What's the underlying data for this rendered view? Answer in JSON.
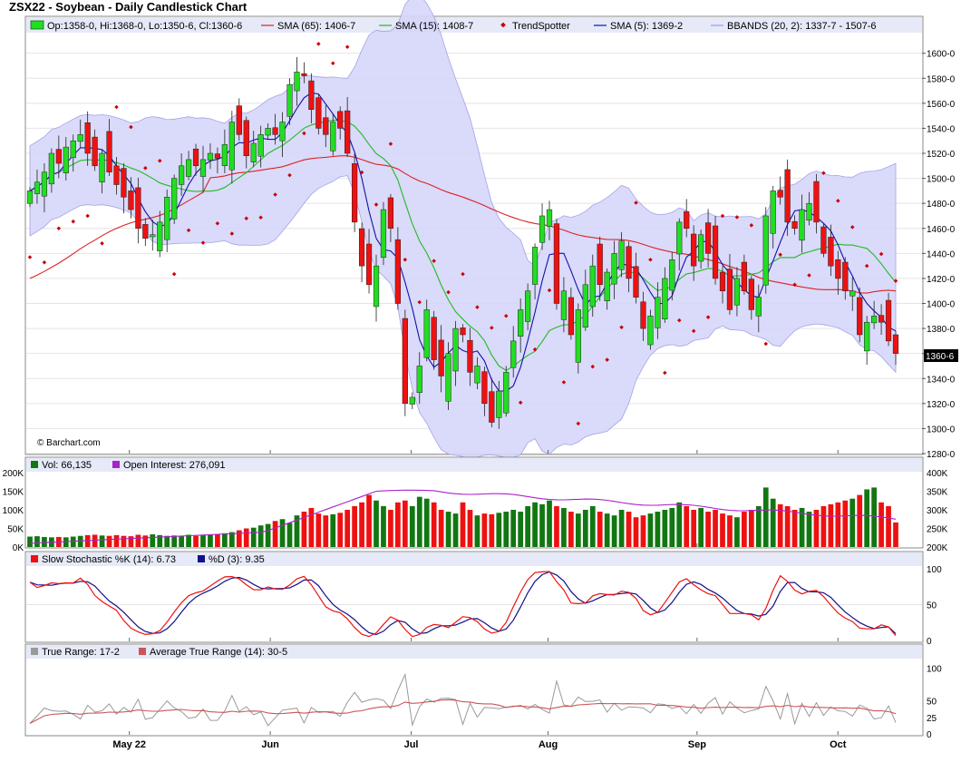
{
  "title": "ZSX22 - Soybean - Daily Candlestick Chart",
  "watermark": "© Barchart.com",
  "colors": {
    "up": "#22dd22",
    "down": "#ee1111",
    "sma65": "#dd2222",
    "sma15": "#22bb22",
    "sma5": "#1111aa",
    "trendspotter": "#cc0000",
    "bbands_fill": "#d6d6fa",
    "bbands_line": "#9a9ae8",
    "band_bg": "#e6e9f7",
    "vol_up": "#117711",
    "vol_down": "#ee1111",
    "oi": "#aa22cc",
    "stoch_k": "#ee1111",
    "stoch_d": "#111188",
    "tr": "#999999",
    "atr": "#cc5555"
  },
  "legend_price": {
    "ohlc": "Op:1358-0, Hi:1368-0, Lo:1350-6, Cl:1360-6",
    "sma65": "SMA (65): 1406-7",
    "sma15": "SMA (15): 1408-7",
    "trendspotter": "TrendSpotter",
    "sma5": "SMA (5): 1369-2",
    "bbands": "BBANDS (20, 2): 1337-7 - 1507-6"
  },
  "legend_volume": {
    "vol": "Vol: 66,135",
    "oi": "Open Interest: 276,091"
  },
  "legend_stoch": {
    "k": "Slow Stochastic %K (14): 6.73",
    "d": "%D (3): 9.35"
  },
  "legend_tr": {
    "tr": "True Range: 17-2",
    "atr": "Average True Range (14): 30-5"
  },
  "last_price_label": "1360-6",
  "x_labels": [
    "May 22",
    "Jun",
    "Jul",
    "Aug",
    "Sep",
    "Oct"
  ],
  "price_axis": {
    "ticks": [
      "1280-0",
      "1300-0",
      "1320-0",
      "1340-0",
      "1360-0",
      "1380-0",
      "1400-0",
      "1420-0",
      "1440-0",
      "1460-0",
      "1480-0",
      "1500-0",
      "1520-0",
      "1540-0",
      "1560-0",
      "1580-0",
      "1600-0"
    ]
  },
  "volume_axis": {
    "left": [
      "0K",
      "50K",
      "100K",
      "150K",
      "200K"
    ],
    "right": [
      "200K",
      "250K",
      "300K",
      "350K",
      "400K"
    ]
  },
  "stoch_axis": [
    "0",
    "50",
    "100"
  ],
  "tr_axis": [
    "0",
    "25",
    "50",
    "100"
  ],
  "chart_data": {
    "type": "candlestick",
    "x_label_positions": [
      0.11,
      0.285,
      0.46,
      0.63,
      0.815,
      0.99
    ],
    "price": {
      "ylim": [
        1280,
        1615
      ],
      "close": [
        1490,
        1497,
        1505,
        1520,
        1512,
        1525,
        1530,
        1535,
        1520,
        1510,
        1520,
        1505,
        1495,
        1485,
        1475,
        1460,
        1452,
        1455,
        1465,
        1485,
        1500,
        1510,
        1515,
        1510,
        1515,
        1520,
        1516,
        1527,
        1545,
        1535,
        1518,
        1528,
        1535,
        1540,
        1535,
        1545,
        1575,
        1585,
        1582,
        1555,
        1540,
        1535,
        1545,
        1540,
        1520,
        1465,
        1430,
        1415,
        1430,
        1475,
        1460,
        1400,
        1320,
        1325,
        1350,
        1395,
        1355,
        1342,
        1360,
        1380,
        1375,
        1345,
        1350,
        1320,
        1305,
        1330,
        1345,
        1370,
        1395,
        1410,
        1445,
        1470,
        1475,
        1400,
        1410,
        1375,
        1395,
        1415,
        1430,
        1415,
        1425,
        1440,
        1450,
        1420,
        1405,
        1380,
        1390,
        1405,
        1420,
        1435,
        1465,
        1460,
        1430,
        1455,
        1440,
        1420,
        1410,
        1395,
        1420,
        1410,
        1395,
        1405,
        1470,
        1490,
        1485,
        1465,
        1460,
        1475,
        1480,
        1465,
        1440,
        1430,
        1420,
        1410,
        1410,
        1375,
        1385,
        1390,
        1385,
        1370,
        1360
      ],
      "sma65_end": 1406.875,
      "sma15_end": 1408.875,
      "sma5_end": 1369.25,
      "bbands_end": [
        1337.875,
        1507.75
      ]
    },
    "volume": {
      "ylim": [
        0,
        200000
      ],
      "oi_ylim": [
        200000,
        400000
      ],
      "values": [
        28000,
        29000,
        27000,
        26000,
        27000,
        26000,
        28000,
        30000,
        32000,
        33000,
        31000,
        30000,
        32000,
        30000,
        29000,
        33000,
        31000,
        34000,
        32000,
        30000,
        31000,
        30000,
        33000,
        30000,
        32000,
        33000,
        35000,
        37000,
        40000,
        45000,
        50000,
        52000,
        58000,
        62000,
        70000,
        75000,
        65000,
        85000,
        95000,
        105000,
        90000,
        85000,
        88000,
        92000,
        100000,
        110000,
        120000,
        140000,
        125000,
        110000,
        100000,
        120000,
        125000,
        110000,
        135000,
        130000,
        120000,
        100000,
        95000,
        90000,
        120000,
        100000,
        85000,
        90000,
        88000,
        92000,
        95000,
        100000,
        95000,
        110000,
        120000,
        115000,
        125000,
        110000,
        105000,
        95000,
        90000,
        100000,
        110000,
        95000,
        90000,
        85000,
        100000,
        95000,
        80000,
        85000,
        90000,
        95000,
        100000,
        105000,
        120000,
        110000,
        100000,
        105000,
        95000,
        100000,
        90000,
        85000,
        80000,
        95000,
        100000,
        110000,
        160000,
        130000,
        115000,
        110000,
        100000,
        105000,
        95000,
        100000,
        110000,
        115000,
        120000,
        125000,
        130000,
        140000,
        155000,
        160000,
        120000,
        110000,
        66135
      ],
      "open_interest_end": 276091
    },
    "stochastic": {
      "ylim": [
        0,
        100
      ],
      "k_end": 6.73,
      "d_end": 9.35
    },
    "true_range": {
      "ylim": [
        0,
        110
      ],
      "tr_end": 17.25,
      "atr_end": 30.625
    }
  }
}
